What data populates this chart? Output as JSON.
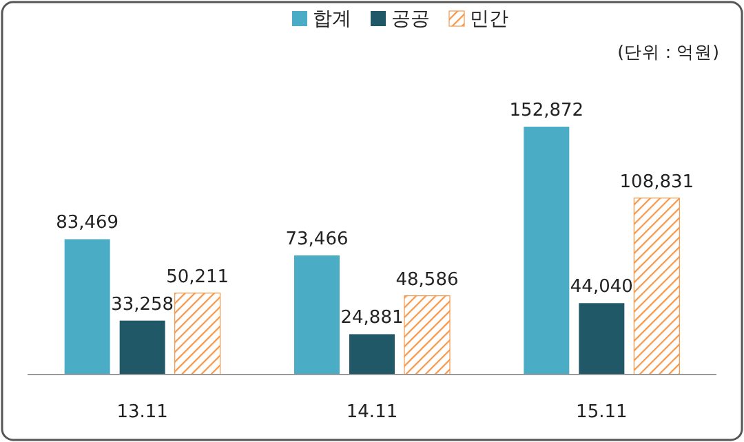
{
  "chart_data": {
    "type": "bar",
    "categories": [
      "13.11",
      "14.11",
      "15.11"
    ],
    "series": [
      {
        "name": "합계",
        "color": "#4bacc6",
        "values": [
          83469,
          73466,
          152872
        ],
        "value_labels": [
          "83,469",
          "73,466",
          "152,872"
        ]
      },
      {
        "name": "공공",
        "color": "#215868",
        "values": [
          33258,
          24881,
          44040
        ],
        "value_labels": [
          "33,258",
          "24,881",
          "44,040"
        ]
      },
      {
        "name": "민간",
        "color": "#f79646",
        "values": [
          50211,
          48586,
          108831
        ],
        "value_labels": [
          "50,211",
          "48,586",
          "108,831"
        ]
      }
    ],
    "legend": "top",
    "annotations": [
      "(단위 : 억원)"
    ]
  }
}
